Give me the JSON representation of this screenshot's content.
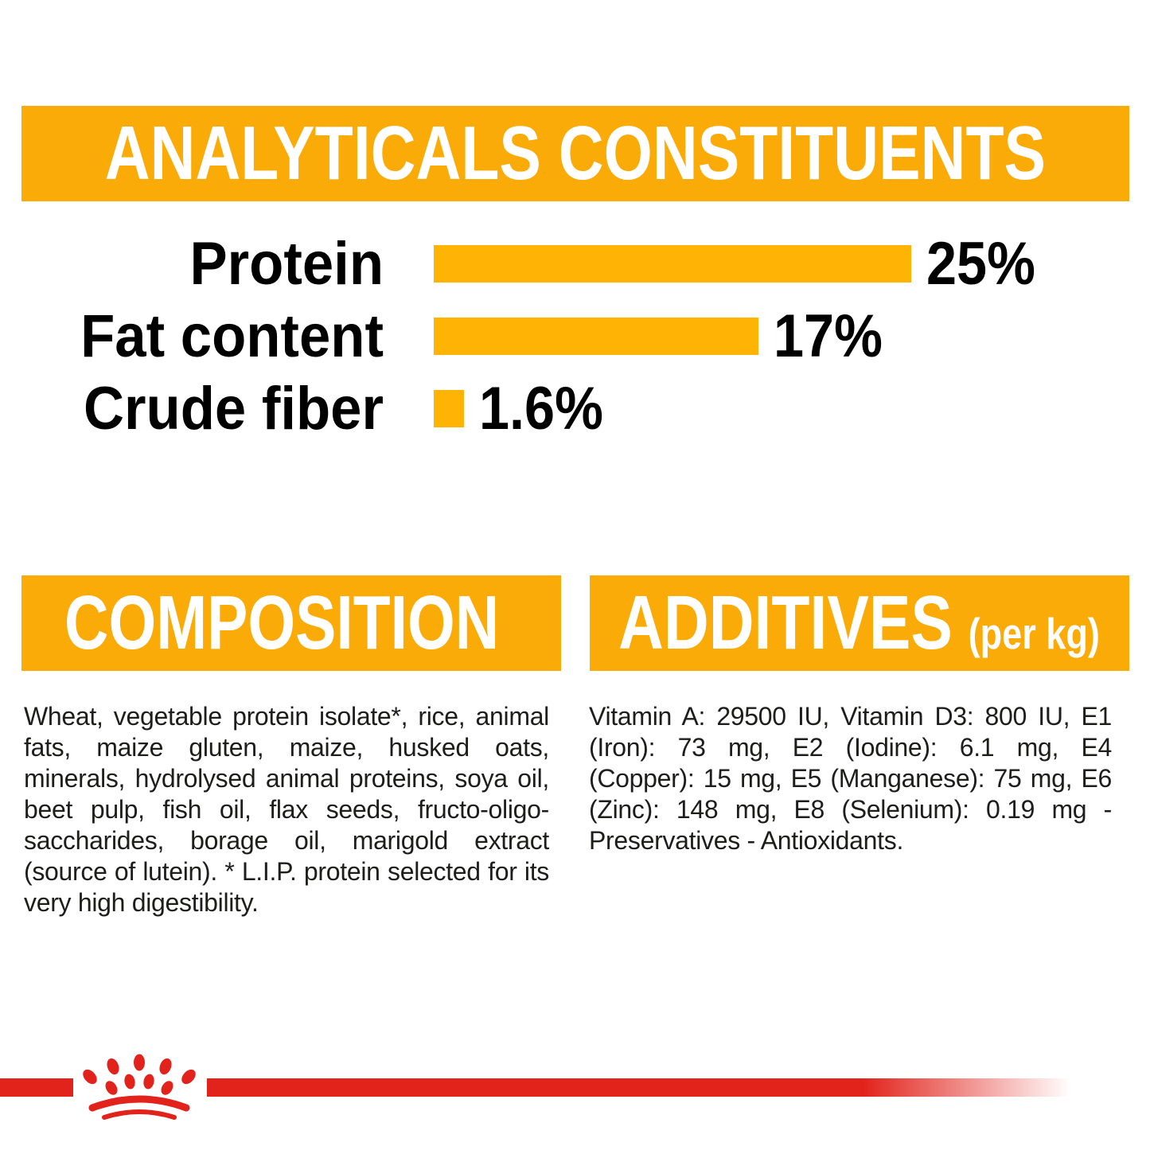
{
  "colors": {
    "amber_band": "#FAAB07",
    "amber_bar": "#FFB405",
    "brand_red": "#E2231C",
    "body_text": "#1d1d1b"
  },
  "analyticals": {
    "title": "ANALYTICALS CONSTITUENTS"
  },
  "chart_data": {
    "type": "bar",
    "orientation": "horizontal",
    "title": "ANALYTICALS CONSTITUENTS",
    "categories": [
      "Protein",
      "Fat content",
      "Crude fiber"
    ],
    "values": [
      25,
      17,
      1.6
    ],
    "value_labels": [
      "25%",
      "17%",
      "1.6%"
    ],
    "unit": "%",
    "bar_color": "#FFB405",
    "axis_range": [
      0,
      25
    ],
    "grid": false,
    "legend": false
  },
  "composition": {
    "title": "COMPOSITION",
    "body": "Wheat, vegetable protein isolate*, rice, animal fats, maize gluten, maize, husked oats, minerals, hydrolysed animal proteins, soya oil, beet pulp, fish oil, flax seeds, fructo-oligo-saccharides, borage oil, marigold extract (source of lutein). * L.I.P. protein selected for its very high digestibility."
  },
  "additives": {
    "title": "ADDITIVES",
    "title_suffix": "(per kg)",
    "body": "Vitamin A: 29500 IU, Vitamin D3: 800 IU, E1 (Iron): 73 mg, E2 (Iodine): 6.1 mg, E4 (Copper): 15 mg, E5 (Manganese): 75 mg, E6 (Zinc): 148 mg, E8 (Selenium): 0.19 mg - Preservatives - Antioxidants.​"
  },
  "footer": {
    "logo": "royal-canin-crown"
  }
}
